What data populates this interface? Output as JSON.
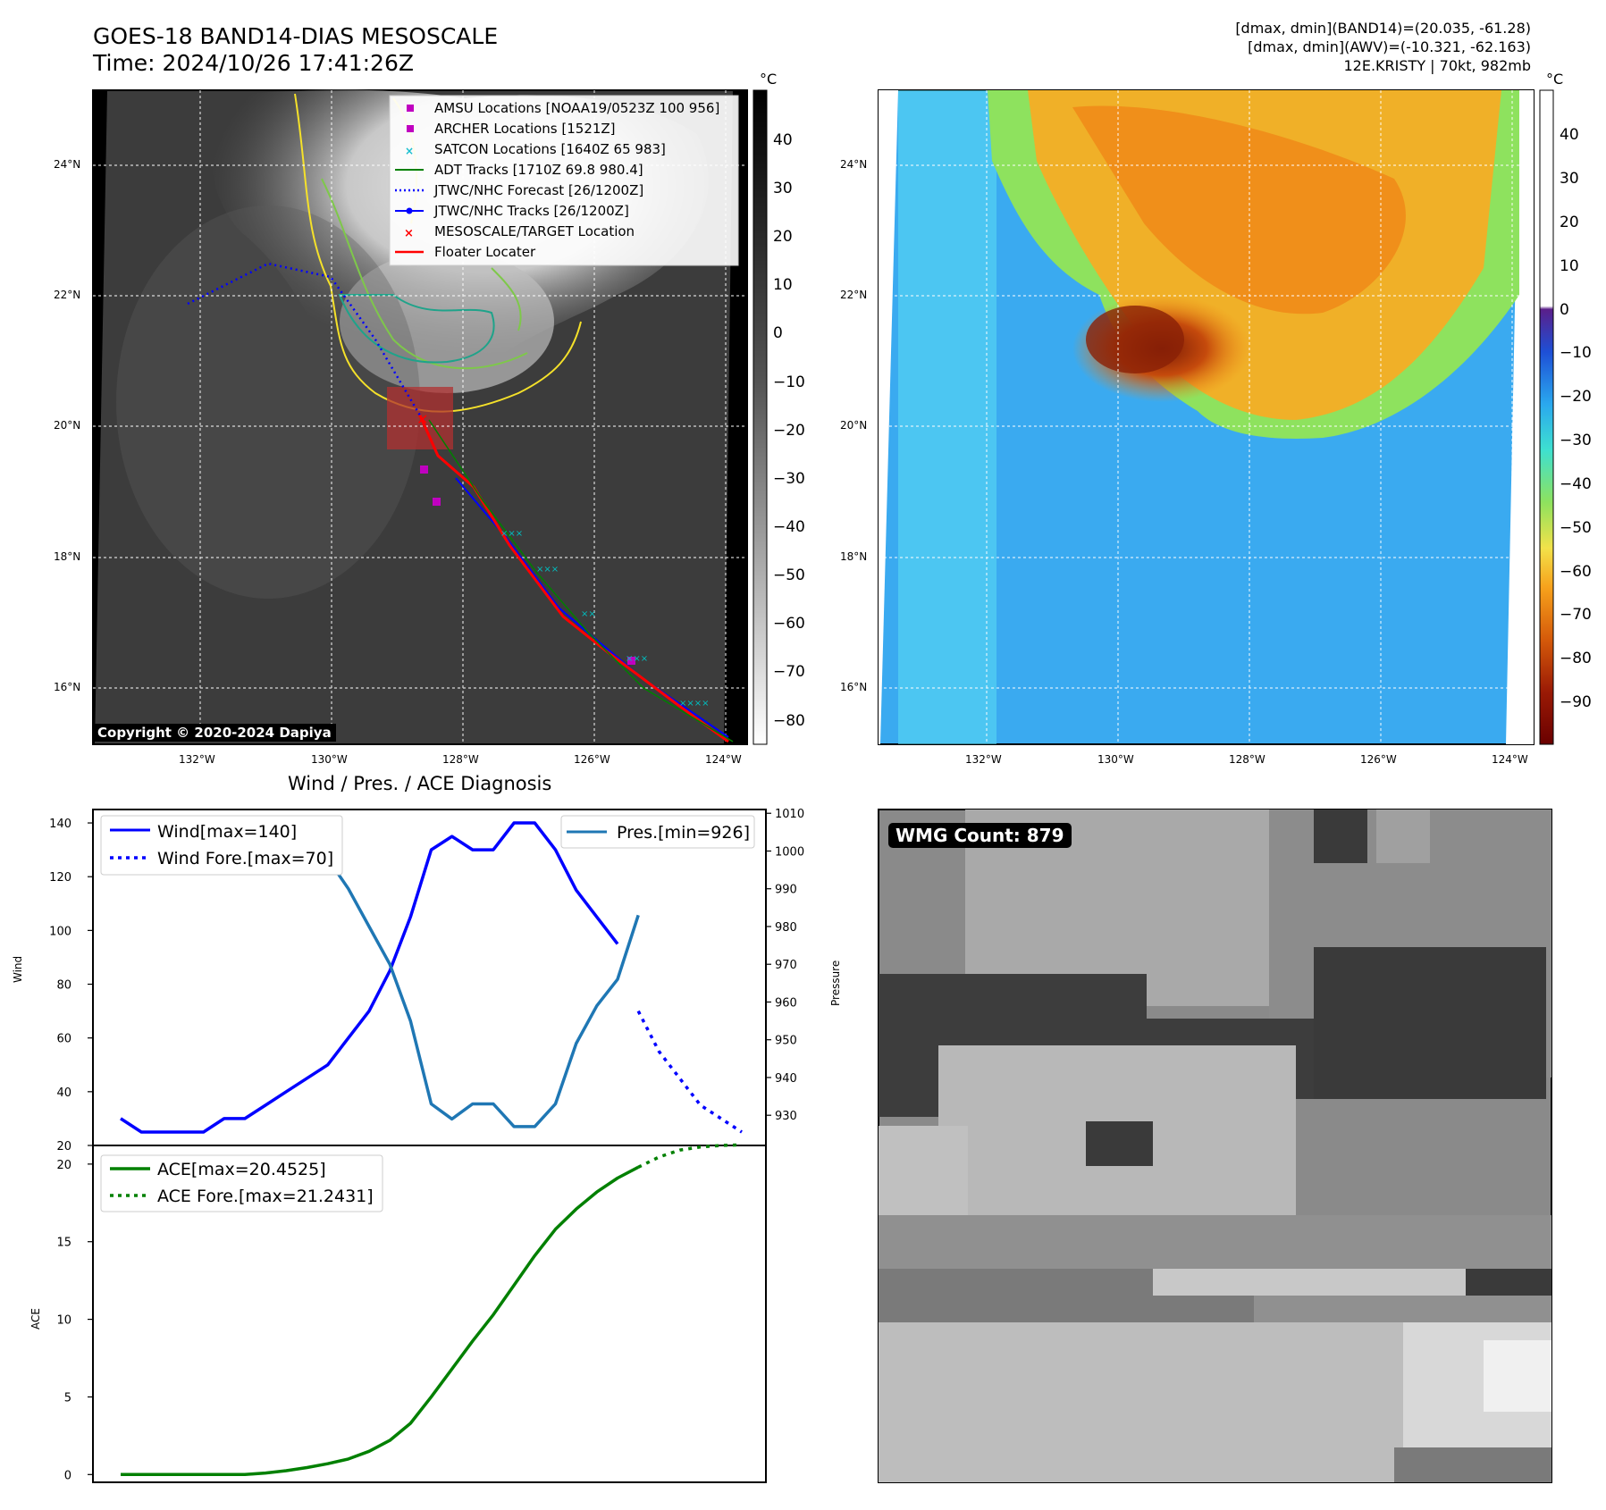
{
  "header": {
    "title": "GOES-18 BAND14-DIAS MESOSCALE",
    "time": "Time: 2024/10/26 17:41:26Z",
    "stats_line1": "[dmax, dmin](BAND14)=(20.035, -61.28)",
    "stats_line2": "[dmax, dmin](AWV)=(-10.321, -62.163)",
    "storm": "12E.KRISTY | 70kt, 982mb"
  },
  "copyright": "Copyright © 2020-2024 Dapiya",
  "map_axes": {
    "lon_ticks": [
      "132°W",
      "130°W",
      "128°W",
      "126°W",
      "124°W"
    ],
    "lat_ticks": [
      "24°N",
      "22°N",
      "20°N",
      "18°N",
      "16°N"
    ]
  },
  "colorbar_left": {
    "unit": "°C",
    "ticks": [
      "40",
      "30",
      "20",
      "10",
      "0",
      "−10",
      "−20",
      "−30",
      "−40",
      "−50",
      "−60",
      "−70",
      "−80"
    ]
  },
  "colorbar_right": {
    "unit": "°C",
    "ticks": [
      "40",
      "30",
      "20",
      "10",
      "0",
      "−10",
      "−20",
      "−30",
      "−40",
      "−50",
      "−60",
      "−70",
      "−80",
      "−90"
    ]
  },
  "legend": {
    "items": [
      {
        "label": "AMSU Locations [NOAA19/0523Z 100 956]",
        "color": "#c000c0",
        "marker": "square"
      },
      {
        "label": "ARCHER Locations [1521Z]",
        "color": "#c000c0",
        "marker": "square"
      },
      {
        "label": "SATCON Locations [1640Z 65 983]",
        "color": "#17becf",
        "marker": "x"
      },
      {
        "label": "ADT Tracks [1710Z 69.8 980.4]",
        "color": "#008000",
        "marker": "line"
      },
      {
        "label": "JTWC/NHC Forecast [26/1200Z]",
        "color": "#0000ff",
        "marker": "dotted"
      },
      {
        "label": "JTWC/NHC Tracks [26/1200Z]",
        "color": "#0000ff",
        "marker": "line-dot"
      },
      {
        "label": "MESOSCALE/TARGET Location",
        "color": "#ff0000",
        "marker": "x"
      },
      {
        "label": "Floater Locater",
        "color": "#ff0000",
        "marker": "line"
      }
    ]
  },
  "wmg": {
    "label": "WMG Count: 879"
  },
  "chart_data": [
    {
      "type": "line",
      "title": "Wind / Pres. / ACE Diagnosis",
      "ylabel": "Wind",
      "ylabel_right": "Pressure",
      "ylim": [
        20,
        145
      ],
      "ylim_right": [
        922,
        1011
      ],
      "yticks": [
        20,
        40,
        60,
        80,
        100,
        120,
        140
      ],
      "yticks_right": [
        930,
        940,
        950,
        960,
        970,
        980,
        990,
        1000,
        1010
      ],
      "series": [
        {
          "name": "Wind[max=140]",
          "color": "#0000ff",
          "style": "solid",
          "axis": "left",
          "x": [
            0,
            1,
            2,
            3,
            4,
            5,
            6,
            7,
            8,
            9,
            10,
            11,
            12,
            13,
            14,
            15,
            16,
            17,
            18,
            19,
            20,
            21,
            22,
            23,
            24
          ],
          "values": [
            30,
            25,
            25,
            25,
            25,
            30,
            30,
            35,
            40,
            45,
            50,
            60,
            70,
            85,
            105,
            130,
            135,
            130,
            130,
            140,
            140,
            130,
            115,
            105,
            95
          ]
        },
        {
          "name": "Wind Fore.[max=70]",
          "color": "#0000ff",
          "style": "dotted",
          "axis": "left",
          "x": [
            25,
            26,
            27,
            28,
            29,
            30
          ],
          "values": [
            70,
            55,
            45,
            35,
            30,
            25
          ]
        },
        {
          "name": "Pres.[min=926]",
          "color": "#1f77b4",
          "style": "solid",
          "axis": "right",
          "x": [
            0,
            1,
            2,
            3,
            4,
            5,
            6,
            7,
            8,
            9,
            10,
            11,
            12,
            13,
            14,
            15,
            16,
            17,
            18,
            19,
            20,
            21,
            22,
            23,
            24,
            25
          ],
          "values": [
            1006,
            1006,
            1006,
            1007,
            1007,
            1007,
            1006,
            1005,
            1003,
            1001,
            998,
            990,
            980,
            970,
            955,
            933,
            929,
            933,
            933,
            927,
            927,
            933,
            949,
            959,
            966,
            983
          ]
        }
      ]
    },
    {
      "type": "line",
      "ylabel": "ACE",
      "ylim": [
        -0.5,
        21.2
      ],
      "yticks": [
        0,
        5,
        10,
        15,
        20
      ],
      "series": [
        {
          "name": "ACE[max=20.4525]",
          "color": "#008000",
          "style": "solid",
          "x": [
            0,
            1,
            2,
            3,
            4,
            5,
            6,
            7,
            8,
            9,
            10,
            11,
            12,
            13,
            14,
            15,
            16,
            17,
            18,
            19,
            20,
            21,
            22,
            23,
            24,
            25
          ],
          "values": [
            0,
            0,
            0,
            0,
            0,
            0,
            0,
            0.1,
            0.25,
            0.45,
            0.7,
            1.0,
            1.5,
            2.2,
            3.3,
            5.0,
            6.8,
            8.6,
            10.3,
            12.2,
            14.1,
            15.8,
            17.1,
            18.2,
            19.1,
            19.8
          ]
        },
        {
          "name": "ACE Fore.[max=21.2431]",
          "color": "#008000",
          "style": "dotted",
          "x": [
            25,
            26,
            27,
            28,
            29,
            30
          ],
          "values": [
            19.8,
            20.45,
            20.9,
            21.1,
            21.2,
            21.24
          ]
        }
      ]
    }
  ]
}
